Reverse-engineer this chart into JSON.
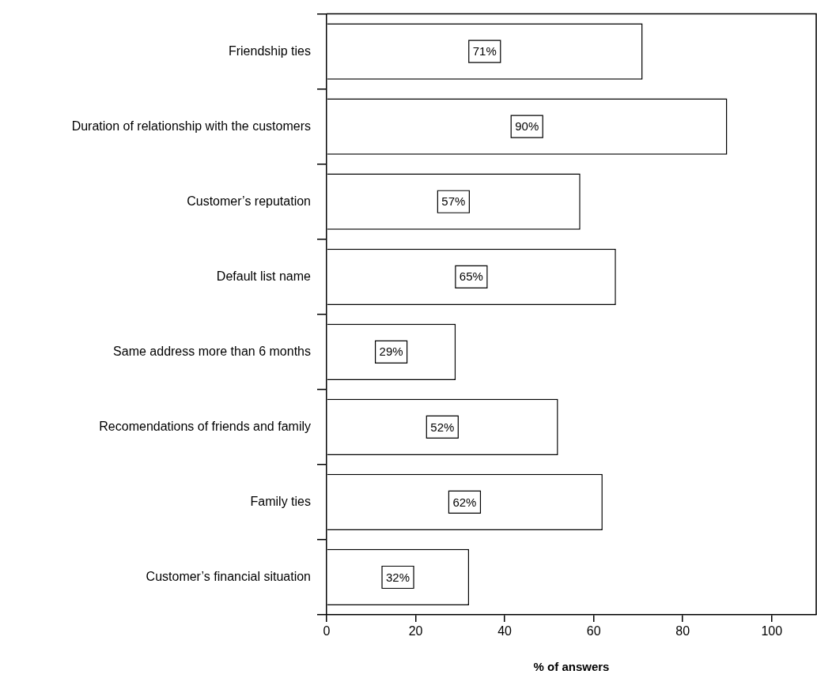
{
  "chart_data": {
    "type": "bar",
    "orientation": "horizontal",
    "xlabel": "% of answers",
    "categories": [
      "Friendship ties",
      "Duration of relationship with the customers",
      "Customer’s reputation",
      "Default list name",
      "Same address more than 6 months",
      "Recomendations of friends and family",
      "Family ties",
      "Customer’s financial situation"
    ],
    "values": [
      71,
      90,
      57,
      65,
      29,
      52,
      62,
      32
    ],
    "value_labels": [
      "71%",
      "90%",
      "57%",
      "65%",
      "29%",
      "52%",
      "62%",
      "32%"
    ],
    "color": "#ffffff",
    "xlim": [
      0,
      110
    ],
    "xticks": [
      0,
      20,
      40,
      60,
      80,
      100
    ],
    "grid": false,
    "legend": false
  }
}
